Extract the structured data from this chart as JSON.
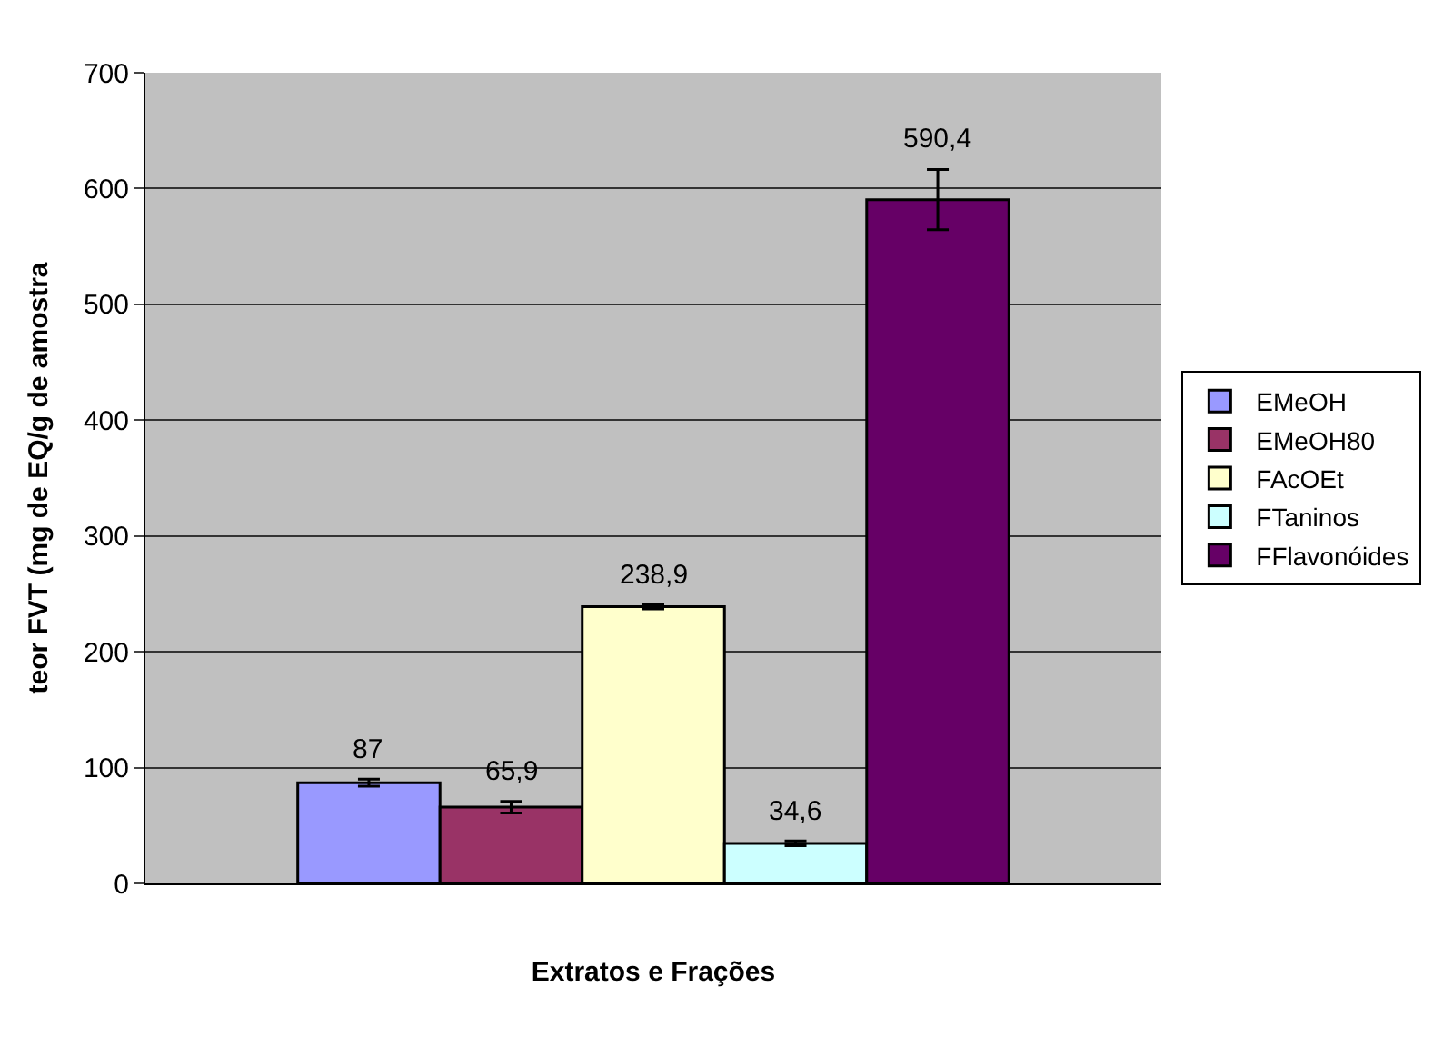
{
  "chart_data": {
    "type": "bar",
    "xlabel": "Extratos e Frações",
    "ylabel": "teor FVT (mg de EQ/g de amostra",
    "categories": [
      null
    ],
    "series": [
      {
        "name": "EMeOH",
        "color": "#9999ff",
        "values": [
          87
        ],
        "errors": [
          3
        ]
      },
      {
        "name": "EMeOH80",
        "color": "#993366",
        "values": [
          65.9
        ],
        "errors": [
          5
        ]
      },
      {
        "name": "FAcOEt",
        "color": "#ffffcc",
        "values": [
          238.9
        ],
        "errors": [
          2
        ]
      },
      {
        "name": "FTaninos",
        "color": "#ccffff",
        "values": [
          34.6
        ],
        "errors": [
          2
        ]
      },
      {
        "name": "FFlavonóides",
        "color": "#660066",
        "values": [
          590.4
        ],
        "errors": [
          26
        ]
      }
    ],
    "value_labels": [
      "87",
      "65,9",
      "238,9",
      "34,6",
      "590,4"
    ],
    "ylim": [
      0,
      700
    ],
    "yticks": [
      0,
      100,
      200,
      300,
      400,
      500,
      600,
      700
    ],
    "grid": "y",
    "legend": "right"
  }
}
